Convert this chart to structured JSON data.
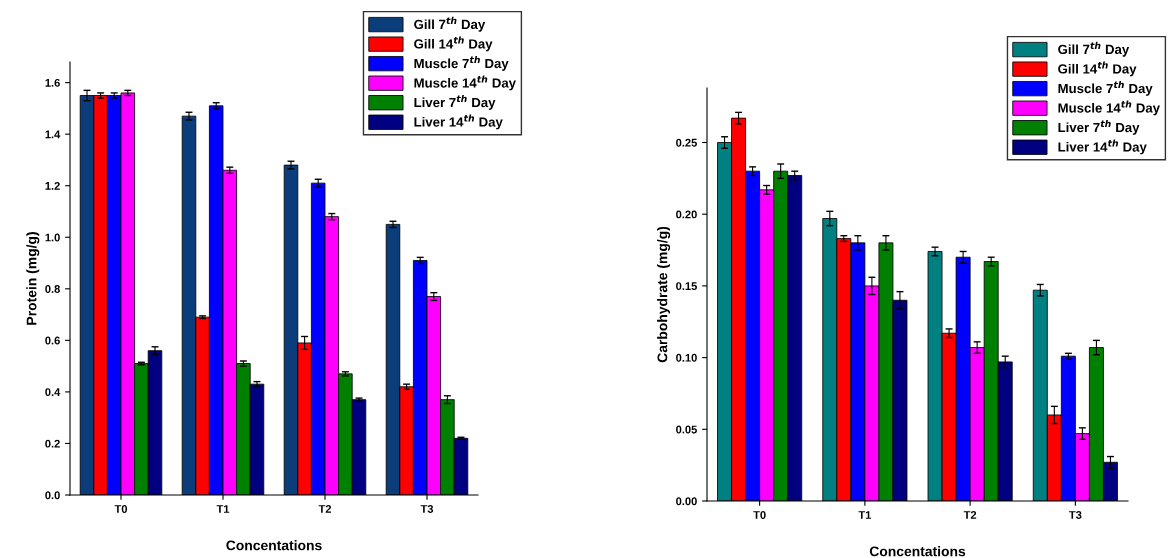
{
  "chart_data": [
    {
      "type": "bar",
      "xlabel": "Concentations",
      "ylabel": "Protein (mg/g)",
      "categories": [
        "T0",
        "T1",
        "T2",
        "T3"
      ],
      "ylim": [
        0,
        1.68
      ],
      "yticks": [
        {
          "value": 0,
          "label": "0.0"
        },
        0.2,
        0.4,
        0.6,
        0.8,
        {
          "value": 1,
          "label": "1.0"
        },
        1.2,
        1.4,
        1.6
      ],
      "legend": "top right",
      "grid": false,
      "series": [
        {
          "name": "Gill 7$^{th}$ Day",
          "color": "#0b3d7a",
          "values": [
            1.55,
            1.47,
            1.28,
            1.05
          ],
          "errors": [
            0.02,
            0.015,
            0.015,
            0.012
          ]
        },
        {
          "name": "Gill 14$^{th}$ Day",
          "color": "#ff0000",
          "values": [
            1.55,
            0.69,
            0.59,
            0.42
          ],
          "errors": [
            0.01,
            0.005,
            0.025,
            0.01
          ]
        },
        {
          "name": "Muscle 7$^{th}$ Day",
          "color": "#0000ff",
          "values": [
            1.55,
            1.51,
            1.21,
            0.91
          ],
          "errors": [
            0.01,
            0.012,
            0.015,
            0.012
          ]
        },
        {
          "name": "Muscle 14$^{th}$ Day",
          "color": "#ff00ff",
          "values": [
            1.56,
            1.26,
            1.08,
            0.77
          ],
          "errors": [
            0.01,
            0.012,
            0.012,
            0.015
          ]
        },
        {
          "name": "Liver 7$^{th}$ Day",
          "color": "#008000",
          "values": [
            0.51,
            0.51,
            0.47,
            0.37
          ],
          "errors": [
            0.005,
            0.01,
            0.008,
            0.015
          ]
        },
        {
          "name": "Liver 14$^{th}$ Day",
          "color": "#000080",
          "values": [
            0.56,
            0.43,
            0.37,
            0.22
          ],
          "errors": [
            0.015,
            0.01,
            0.006,
            0.004
          ]
        }
      ]
    },
    {
      "type": "bar",
      "xlabel": "Concentations",
      "ylabel": "Carbohydrate (mg/g)",
      "categories": [
        "T0",
        "T1",
        "T2",
        "T3"
      ],
      "ylim": [
        0,
        0.288
      ],
      "yticks": [
        {
          "value": 0,
          "label": "0.00"
        },
        0.05,
        {
          "value": 0.1,
          "label": "0.10"
        },
        0.15,
        {
          "value": 0.2,
          "label": "0.20"
        },
        0.25
      ],
      "legend": "top right",
      "grid": false,
      "series": [
        {
          "name": "Gill 7$^{th}$ Day",
          "color": "#008080",
          "values": [
            0.25,
            0.197,
            0.174,
            0.147
          ],
          "errors": [
            0.004,
            0.005,
            0.003,
            0.004
          ]
        },
        {
          "name": "Gill 14$^{th}$ Day",
          "color": "#ff0000",
          "values": [
            0.267,
            0.183,
            0.117,
            0.06
          ],
          "errors": [
            0.004,
            0.002,
            0.003,
            0.006
          ]
        },
        {
          "name": "Muscle 7$^{th}$ Day",
          "color": "#0000ff",
          "values": [
            0.23,
            0.18,
            0.17,
            0.101
          ],
          "errors": [
            0.003,
            0.005,
            0.004,
            0.002
          ]
        },
        {
          "name": "Muscle 14$^{th}$ Day",
          "color": "#ff00ff",
          "values": [
            0.217,
            0.15,
            0.107,
            0.047
          ],
          "errors": [
            0.003,
            0.006,
            0.004,
            0.004
          ]
        },
        {
          "name": "Liver 7$^{th}$ Day",
          "color": "#008000",
          "values": [
            0.23,
            0.18,
            0.167,
            0.107
          ],
          "errors": [
            0.005,
            0.005,
            0.003,
            0.005
          ]
        },
        {
          "name": "Liver 14$^{th}$ Day",
          "color": "#000080",
          "values": [
            0.227,
            0.14,
            0.097,
            0.027
          ],
          "errors": [
            0.003,
            0.006,
            0.004,
            0.004
          ]
        }
      ]
    }
  ]
}
